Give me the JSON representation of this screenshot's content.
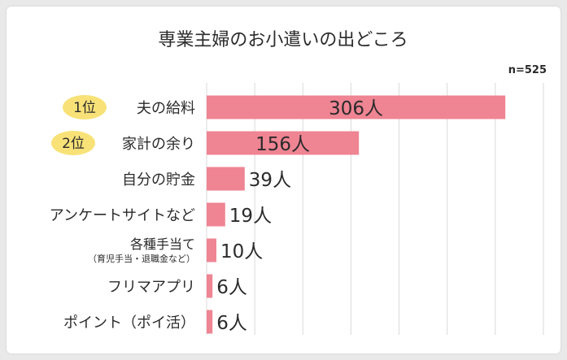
{
  "chart_data": {
    "type": "bar",
    "orientation": "horizontal",
    "title": "専業主婦のお小遣いの出どころ",
    "sample_size": "n=525",
    "unit": "人",
    "categories": [
      {
        "label": "夫の給料",
        "sublabel": "",
        "rank": "1位",
        "value": 306,
        "value_label": "306人"
      },
      {
        "label": "家計の余り",
        "sublabel": "",
        "rank": "2位",
        "value": 156,
        "value_label": "156人"
      },
      {
        "label": "自分の貯金",
        "sublabel": "",
        "rank": "",
        "value": 39,
        "value_label": "39人"
      },
      {
        "label": "アンケートサイトなど",
        "sublabel": "",
        "rank": "",
        "value": 19,
        "value_label": "19人"
      },
      {
        "label": "各種手当て",
        "sublabel": "（育児手当・退職金など）",
        "rank": "",
        "value": 10,
        "value_label": "10人"
      },
      {
        "label": "フリマアプリ",
        "sublabel": "",
        "rank": "",
        "value": 6,
        "value_label": "6人"
      },
      {
        "label": "ポイント（ポイ活）",
        "sublabel": "",
        "rank": "",
        "value": 6,
        "value_label": "6人"
      }
    ],
    "xlim": [
      0,
      345
    ],
    "grid": true,
    "colors": {
      "bar": "#ef8493",
      "rank_badge": "#f8e278",
      "grid": "#d9d9d9",
      "text": "#2b2b2b"
    }
  }
}
